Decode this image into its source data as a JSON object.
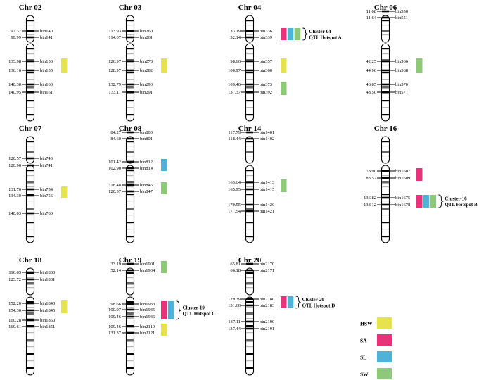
{
  "colors": {
    "HSW": "#e6e34e",
    "SA": "#e8337a",
    "SL": "#4fb3d9",
    "SW": "#8ec97a",
    "dark": "#000000",
    "mid": "#666666",
    "light": "#b8b8b8"
  },
  "legend": [
    {
      "key": "HSW",
      "label": "HSW"
    },
    {
      "key": "SA",
      "label": "SA"
    },
    {
      "key": "SL",
      "label": "SL"
    },
    {
      "key": "SW",
      "label": "SW"
    }
  ],
  "chromosomes": [
    {
      "name": "Chr 02",
      "bins": [
        {
          "pos": "97.37",
          "bin": "bin140"
        },
        {
          "pos": "99.99",
          "bin": "bin141"
        },
        {
          "pos": "133.98",
          "bin": "bin153"
        },
        {
          "pos": "136.16",
          "bin": "bin155"
        },
        {
          "pos": "140.30",
          "bin": "bin160"
        },
        {
          "pos": "140.95",
          "bin": "bin161"
        }
      ],
      "qtls": [
        {
          "bins": [
            2,
            3
          ],
          "traits": [
            "HSW"
          ]
        }
      ]
    },
    {
      "name": "Chr 03",
      "bins": [
        {
          "pos": "113.93",
          "bin": "bin260"
        },
        {
          "pos": "114.07",
          "bin": "bin261"
        },
        {
          "pos": "126.97",
          "bin": "bin278"
        },
        {
          "pos": "128.97",
          "bin": "bin282"
        },
        {
          "pos": "132.79",
          "bin": "bin290"
        },
        {
          "pos": "133.11",
          "bin": "bin291"
        }
      ],
      "qtls": [
        {
          "bins": [
            2,
            3
          ],
          "traits": [
            "HSW"
          ]
        }
      ]
    },
    {
      "name": "Chr 04",
      "bins": [
        {
          "pos": "33.19",
          "bin": "bin336"
        },
        {
          "pos": "52.14",
          "bin": "bin339"
        },
        {
          "pos": "98.66",
          "bin": "bin357"
        },
        {
          "pos": "100.97",
          "bin": "bin360"
        },
        {
          "pos": "109.46",
          "bin": "bin373"
        },
        {
          "pos": "131.37",
          "bin": "bin392"
        }
      ],
      "qtls": [
        {
          "bins": [
            0,
            1
          ],
          "traits": [
            "SA",
            "SL",
            "SW"
          ],
          "cluster": [
            "Cluster-04",
            "QTL Hotspot A"
          ]
        },
        {
          "bins": [
            2,
            3
          ],
          "traits": [
            "HSW"
          ]
        },
        {
          "bins": [
            4,
            5
          ],
          "traits": [
            "SW"
          ]
        }
      ]
    },
    {
      "name": "Chr 06",
      "bins": [
        {
          "pos": "11.08",
          "bin": "bin550"
        },
        {
          "pos": "11.64",
          "bin": "bin551"
        },
        {
          "pos": "42.25",
          "bin": "bin566"
        },
        {
          "pos": "44.96",
          "bin": "bin568"
        },
        {
          "pos": "46.85",
          "bin": "bin570"
        },
        {
          "pos": "48.50",
          "bin": "bin571"
        }
      ],
      "qtls": [
        {
          "bins": [
            2,
            3
          ],
          "traits": [
            "SW"
          ]
        }
      ]
    },
    {
      "name": "Chr 07",
      "bins": [
        {
          "pos": "120.57",
          "bin": "bin740"
        },
        {
          "pos": "120.90",
          "bin": "bin741"
        },
        {
          "pos": "131.76",
          "bin": "bin754"
        },
        {
          "pos": "134.30",
          "bin": "bin756"
        },
        {
          "pos": "140.03",
          "bin": "bin760"
        }
      ],
      "qtls": [
        {
          "bins": [
            2,
            3
          ],
          "traits": [
            "HSW"
          ]
        }
      ]
    },
    {
      "name": "Chr 08",
      "bins": [
        {
          "pos": "84.27",
          "bin": "bin800"
        },
        {
          "pos": "84.60",
          "bin": "bin801"
        },
        {
          "pos": "101.42",
          "bin": "bin812"
        },
        {
          "pos": "102.90",
          "bin": "bin814"
        },
        {
          "pos": "118.48",
          "bin": "bin845"
        },
        {
          "pos": "120.37",
          "bin": "bin847"
        }
      ],
      "qtls": [
        {
          "bins": [
            2,
            3
          ],
          "traits": [
            "SL"
          ]
        },
        {
          "bins": [
            4,
            5
          ],
          "traits": [
            "SW"
          ]
        }
      ]
    },
    {
      "name": "Chr 14",
      "bins": [
        {
          "pos": "117.79",
          "bin": "bin1401"
        },
        {
          "pos": "118.44",
          "bin": "bin1402"
        },
        {
          "pos": "163.64",
          "bin": "bin1413"
        },
        {
          "pos": "165.95",
          "bin": "bin1415"
        },
        {
          "pos": "170.55",
          "bin": "bin1420"
        },
        {
          "pos": "171.54",
          "bin": "bin1421"
        }
      ],
      "qtls": [
        {
          "bins": [
            2,
            3
          ],
          "traits": [
            "SW"
          ]
        }
      ]
    },
    {
      "name": "Chr 16",
      "bins": [
        {
          "pos": "78.90",
          "bin": "bin1607"
        },
        {
          "pos": "83.52",
          "bin": "bin1609"
        },
        {
          "pos": "136.82",
          "bin": "bin1675"
        },
        {
          "pos": "138.12",
          "bin": "bin1678"
        }
      ],
      "qtls": [
        {
          "bins": [
            0,
            1
          ],
          "traits": [
            "SA"
          ]
        },
        {
          "bins": [
            2,
            3
          ],
          "traits": [
            "SA",
            "SL",
            "SW"
          ],
          "cluster": [
            "Cluster-16",
            "QTL Hotspot B"
          ]
        }
      ]
    },
    {
      "name": "Chr 18",
      "bins": [
        {
          "pos": "116.63",
          "bin": "bin1830"
        },
        {
          "pos": "123.72",
          "bin": "bin1831"
        },
        {
          "pos": "152.20",
          "bin": "bin1843"
        },
        {
          "pos": "154.30",
          "bin": "bin1845"
        },
        {
          "pos": "160.28",
          "bin": "bin1850"
        },
        {
          "pos": "160.61",
          "bin": "bin1851"
        }
      ],
      "qtls": [
        {
          "bins": [
            2,
            3
          ],
          "traits": [
            "HSW"
          ]
        }
      ]
    },
    {
      "name": "Chr 19",
      "bins": [
        {
          "pos": "33.19",
          "bin": "bin1901"
        },
        {
          "pos": "52.14",
          "bin": "bin1904"
        },
        {
          "pos": "98.66",
          "bin": "bin1933"
        },
        {
          "pos": "100.97",
          "bin": "bin1935"
        },
        {
          "pos": "109.46",
          "bin": "bin1936"
        },
        {
          "pos": "109.46",
          "bin": "bin2119"
        },
        {
          "pos": "131.37",
          "bin": "bin2121"
        }
      ],
      "qtls": [
        {
          "bins": [
            0,
            1
          ],
          "traits": [
            "SW"
          ]
        },
        {
          "bins": [
            2,
            4
          ],
          "traits": [
            "SA",
            "SL"
          ],
          "cluster": [
            "Cluster-19",
            "QTL Hotspot C"
          ]
        },
        {
          "bins": [
            5,
            6
          ],
          "traits": [
            "HSW"
          ]
        }
      ]
    },
    {
      "name": "Chr 20",
      "bins": [
        {
          "pos": "65.81",
          "bin": "bin2170"
        },
        {
          "pos": "66.18",
          "bin": "bin2171"
        },
        {
          "pos": "129.39",
          "bin": "bin2180"
        },
        {
          "pos": "131.60",
          "bin": "bin2183"
        },
        {
          "pos": "137.11",
          "bin": "bin2190"
        },
        {
          "pos": "137.44",
          "bin": "bin2191"
        }
      ],
      "qtls": [
        {
          "bins": [
            2,
            3
          ],
          "traits": [
            "SA",
            "SL"
          ],
          "cluster": [
            "Cluster-20",
            "QTL Hotspot D"
          ]
        }
      ]
    }
  ]
}
